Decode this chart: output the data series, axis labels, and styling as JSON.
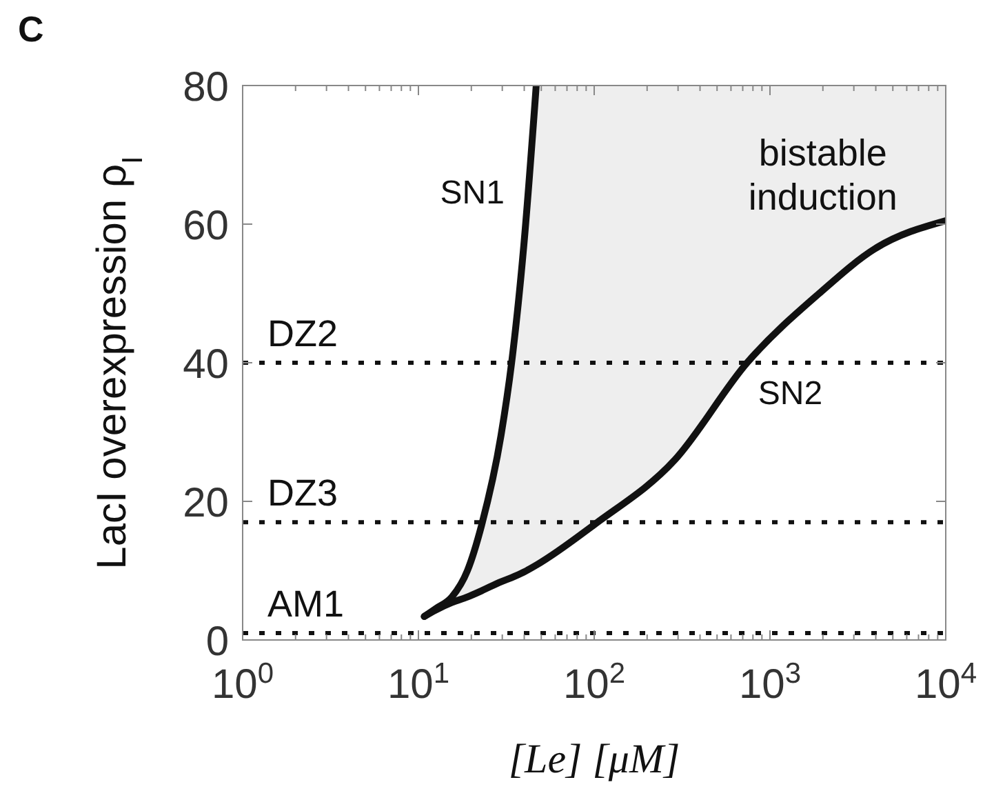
{
  "chart_data": {
    "type": "line",
    "title": "C",
    "xlabel": "[Le] [μM]",
    "ylabel": "LacI overexpression ρ$_{I}$",
    "log": "x",
    "xlim": [
      1,
      10000
    ],
    "ylim": [
      0,
      80
    ],
    "xticks": [
      {
        "value": 1,
        "label": "10$^{0}$"
      },
      {
        "value": 2,
        "label": null
      },
      {
        "value": 3,
        "label": null
      },
      {
        "value": 4,
        "label": null
      },
      {
        "value": 5,
        "label": null
      },
      {
        "value": 6,
        "label": null
      },
      {
        "value": 7,
        "label": null
      },
      {
        "value": 8,
        "label": null
      },
      {
        "value": 9,
        "label": null
      },
      {
        "value": 10,
        "label": "10$^{1}$"
      },
      {
        "value": 20,
        "label": null
      },
      {
        "value": 30,
        "label": null
      },
      {
        "value": 40,
        "label": null
      },
      {
        "value": 50,
        "label": null
      },
      {
        "value": 60,
        "label": null
      },
      {
        "value": 70,
        "label": null
      },
      {
        "value": 80,
        "label": null
      },
      {
        "value": 90,
        "label": null
      },
      {
        "value": 100,
        "label": "10$^{2}$"
      },
      {
        "value": 200,
        "label": null
      },
      {
        "value": 300,
        "label": null
      },
      {
        "value": 400,
        "label": null
      },
      {
        "value": 500,
        "label": null
      },
      {
        "value": 600,
        "label": null
      },
      {
        "value": 700,
        "label": null
      },
      {
        "value": 800,
        "label": null
      },
      {
        "value": 900,
        "label": null
      },
      {
        "value": 1000,
        "label": "10$^{3}$"
      },
      {
        "value": 2000,
        "label": null
      },
      {
        "value": 3000,
        "label": null
      },
      {
        "value": 4000,
        "label": null
      },
      {
        "value": 5000,
        "label": null
      },
      {
        "value": 6000,
        "label": null
      },
      {
        "value": 7000,
        "label": null
      },
      {
        "value": 8000,
        "label": null
      },
      {
        "value": 9000,
        "label": null
      },
      {
        "value": 10000,
        "label": "10$^{4}$"
      }
    ],
    "yticks": [
      0,
      20,
      40,
      60,
      80
    ],
    "marker": "none",
    "line_style": "solid",
    "series": [
      {
        "name": "SN1",
        "color": "#111111",
        "x": [
          10.8,
          12.5,
          15.5,
          19,
          22.9,
          29.5,
          33.9,
          39.8,
          46.8
        ],
        "values": [
          3.4,
          4.5,
          6.2,
          10,
          16.6,
          29.5,
          40,
          57,
          80
        ]
      },
      {
        "name": "SN2",
        "color": "#111111",
        "x": [
          10.8,
          12.5,
          15.5,
          19,
          22.9,
          29.5,
          33.9,
          39.8,
          46.8,
          102,
          288,
          741,
          1905,
          3981,
          10000
        ],
        "values": [
          3.4,
          4.3,
          5.4,
          6.2,
          7.1,
          8.4,
          9,
          9.8,
          10.8,
          16.8,
          26,
          40,
          50,
          56.5,
          60.5
        ],
        "lower": [
          3.4,
          4.3,
          5.4,
          6.2,
          7.1,
          8.4,
          9,
          9.8,
          10.8,
          16.8,
          26,
          40,
          50,
          56.5,
          60.5
        ],
        "upper": [
          3.4,
          4.5,
          6.2,
          10,
          16.6,
          29.5,
          40,
          57,
          80,
          80,
          80,
          80,
          80,
          80,
          80
        ]
      }
    ],
    "ref_lines": [
      {
        "axis": "y",
        "value": 40,
        "label": "DZ2",
        "color": "#111111",
        "line_style": "dotted"
      },
      {
        "axis": "y",
        "value": 17,
        "label": "DZ3",
        "color": "#111111",
        "line_style": "dotted"
      },
      {
        "axis": "y",
        "value": 1,
        "label": "AM1",
        "color": "#111111",
        "line_style": "dotted"
      }
    ],
    "annotations": [
      "bistable induction"
    ]
  }
}
